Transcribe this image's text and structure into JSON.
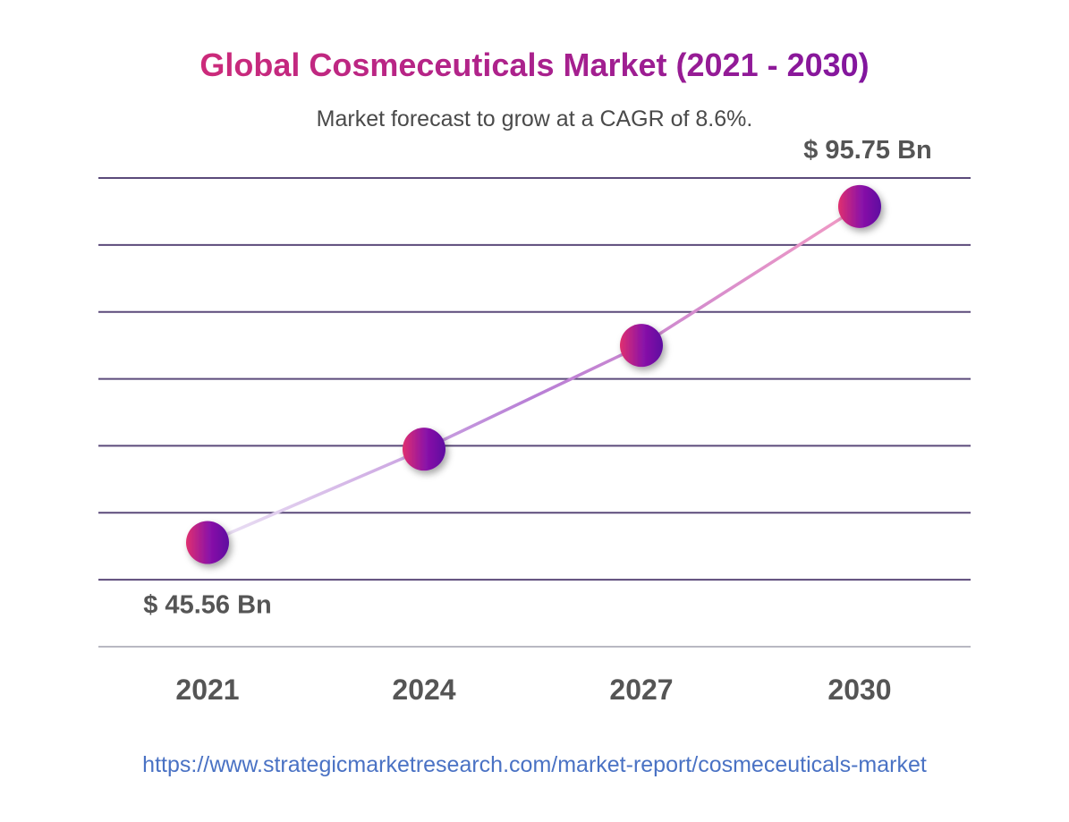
{
  "header": {
    "title": "Global Cosmeceuticals Market (2021 - 2030)",
    "subtitle": "Market forecast to grow at a CAGR of 8.6%."
  },
  "chart_data": {
    "type": "line",
    "title": "Global Cosmeceuticals Market (2021 - 2030)",
    "subtitle": "Market forecast to grow at a CAGR of 8.6%.",
    "categories": [
      "2021",
      "2024",
      "2027",
      "2030"
    ],
    "series": [
      {
        "values": [
          45.56,
          59.5,
          75.0,
          95.75
        ]
      }
    ],
    "data_labels": [
      {
        "category": "2021",
        "text": "$ 45.56 Bn",
        "position": "below"
      },
      {
        "category": "2030",
        "text": "$ 95.75 Bn",
        "position": "above"
      }
    ],
    "xlabel": "",
    "ylabel": "",
    "ylim": [
      30,
      100
    ],
    "y_gridlines": [
      30,
      40,
      50,
      60,
      70,
      80,
      90,
      100
    ],
    "grid": true,
    "legend": "none",
    "y_tick_labels_shown": false,
    "colors": {
      "gridline": "#5b4a7a",
      "baseline": "#8e8e9e",
      "marker_left": "#e0306f",
      "marker_right": "#6a0fa8",
      "line_start": "#e6dcf2",
      "line_mid": "#b87fd6",
      "line_end": "#f08fbf",
      "label_text": "#555555",
      "tick_text": "#555555"
    }
  },
  "footer": {
    "source_url": "https://www.strategicmarketresearch.com/market-report/cosmeceuticals-market"
  }
}
